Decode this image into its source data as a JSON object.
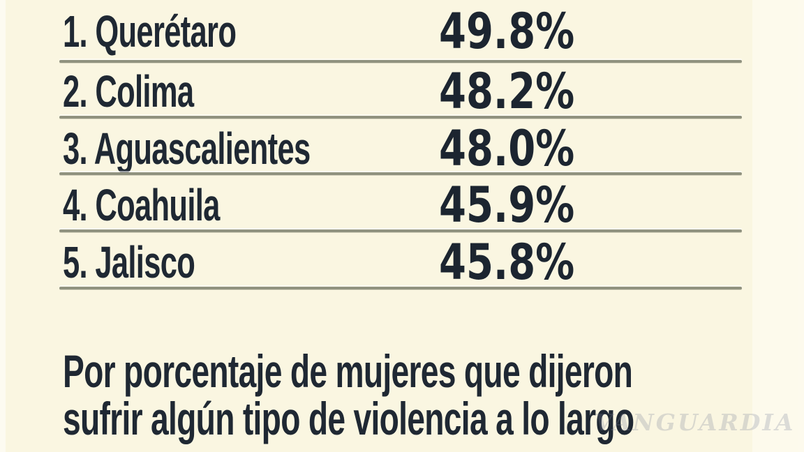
{
  "chart_data": {
    "type": "table",
    "title": "",
    "categories": [
      "Querétaro",
      "Colima",
      "Aguascalientes",
      "Coahuila",
      "Jalisco"
    ],
    "ranks": [
      1,
      2,
      3,
      4,
      5
    ],
    "values": [
      49.8,
      48.2,
      48.0,
      45.9,
      45.8
    ],
    "unit": "%",
    "note": "Por porcentaje de mujeres que dijeron sufrir algún tipo de violencia a lo largo",
    "grid": "horizontal-row-separators",
    "legend_position": "none"
  },
  "rows": [
    {
      "rank": "1.",
      "state": "Querétaro",
      "value": "49.8%"
    },
    {
      "rank": "2.",
      "state": "Colima",
      "value": "48.2%"
    },
    {
      "rank": "3.",
      "state": "Aguascalientes",
      "value": "48.0%"
    },
    {
      "rank": "4.",
      "state": "Coahuila",
      "value": "45.9%"
    },
    {
      "rank": "5.",
      "state": "Jalisco",
      "value": "45.8%"
    }
  ],
  "caption": {
    "line1": "Por porcentaje de mujeres que dijeron",
    "line2": "sufrir algún tipo de violencia a lo largo"
  },
  "watermark": {
    "text": "VANGUARDIA"
  },
  "colors": {
    "background": "#FAF6E1",
    "text": "#1F2833",
    "value_text": "#1C2530",
    "separator": "#90927F"
  }
}
